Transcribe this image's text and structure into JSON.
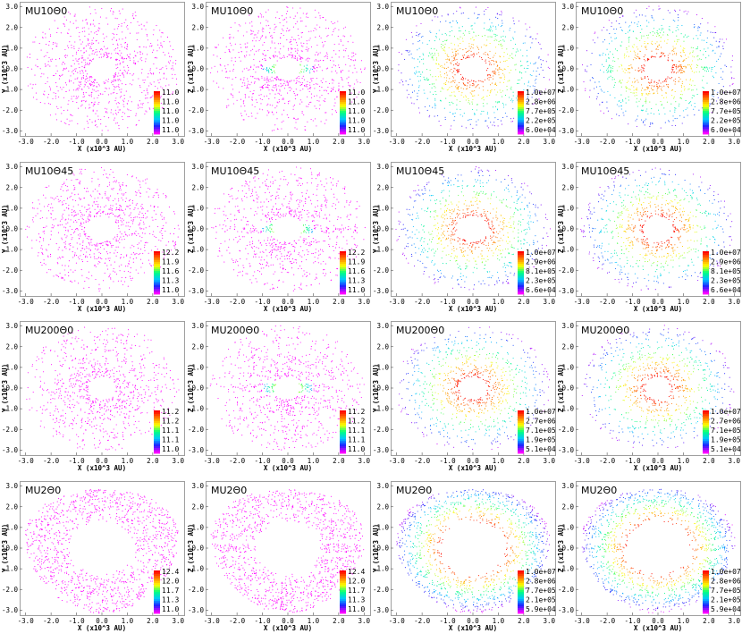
{
  "colormap": [
    "#ff00ff",
    "#2020ff",
    "#00c8ff",
    "#00ff80",
    "#ffff00",
    "#ff8000",
    "#ff0000"
  ],
  "axes": {
    "xticks": [
      "-3.0",
      "-2.0",
      "-1.0",
      "0.0",
      "1.0",
      "2.0",
      "3.0"
    ],
    "yticks": [
      "3.0",
      "2.0",
      "1.0",
      "0.0",
      "-1.0",
      "-2.0",
      "-3.0"
    ],
    "xlabel": "X (x10^3 AU)",
    "ylabel_face": "Y (x10^3 AU)",
    "ylabel_edge": "Z (x10^3 AU)"
  },
  "chart_data": [
    {
      "type": "scatter",
      "title": "MU10Θ0",
      "view": "face",
      "field": "temp",
      "xlim": [
        -3.2,
        3.2
      ],
      "ylim": [
        -3.2,
        3.2
      ],
      "colorbar": [
        "11.0",
        "11.0",
        "11.0",
        "11.0",
        "11.0"
      ]
    },
    {
      "type": "scatter",
      "title": "MU10Θ0",
      "view": "edge",
      "field": "temp",
      "xlim": [
        -3.2,
        3.2
      ],
      "ylim": [
        -3.2,
        3.2
      ],
      "colorbar": [
        "11.0",
        "11.0",
        "11.0",
        "11.0",
        "11.0"
      ]
    },
    {
      "type": "scatter",
      "title": "MU10Θ0",
      "view": "face",
      "field": "dens",
      "xlim": [
        -3.2,
        3.2
      ],
      "ylim": [
        -3.2,
        3.2
      ],
      "colorbar": [
        "1.0e+07",
        "2.8e+06",
        "7.7e+05",
        "2.2e+05",
        "6.0e+04"
      ]
    },
    {
      "type": "scatter",
      "title": "MU10Θ0",
      "view": "edge",
      "field": "dens",
      "xlim": [
        -3.2,
        3.2
      ],
      "ylim": [
        -3.2,
        3.2
      ],
      "colorbar": [
        "1.0e+07",
        "2.8e+06",
        "7.7e+05",
        "2.2e+05",
        "6.0e+04"
      ]
    },
    {
      "type": "scatter",
      "title": "MU10Θ45",
      "view": "face",
      "field": "temp",
      "xlim": [
        -3.2,
        3.2
      ],
      "ylim": [
        -3.2,
        3.2
      ],
      "colorbar": [
        "12.2",
        "11.9",
        "11.6",
        "11.3",
        "11.0"
      ]
    },
    {
      "type": "scatter",
      "title": "MU10Θ45",
      "view": "edge",
      "field": "temp",
      "xlim": [
        -3.2,
        3.2
      ],
      "ylim": [
        -3.2,
        3.2
      ],
      "colorbar": [
        "12.2",
        "11.9",
        "11.6",
        "11.3",
        "11.0"
      ]
    },
    {
      "type": "scatter",
      "title": "MU10Θ45",
      "view": "face",
      "field": "dens",
      "xlim": [
        -3.2,
        3.2
      ],
      "ylim": [
        -3.2,
        3.2
      ],
      "colorbar": [
        "1.0e+07",
        "2.9e+06",
        "8.1e+05",
        "2.3e+05",
        "6.6e+04"
      ]
    },
    {
      "type": "scatter",
      "title": "MU10Θ45",
      "view": "edge",
      "field": "dens",
      "xlim": [
        -3.2,
        3.2
      ],
      "ylim": [
        -3.2,
        3.2
      ],
      "colorbar": [
        "1.0e+07",
        "2.9e+06",
        "8.1e+05",
        "2.3e+05",
        "6.6e+04"
      ]
    },
    {
      "type": "scatter",
      "title": "MU200Θ0",
      "view": "face",
      "field": "temp",
      "xlim": [
        -3.2,
        3.2
      ],
      "ylim": [
        -3.2,
        3.2
      ],
      "colorbar": [
        "11.2",
        "11.2",
        "11.1",
        "11.1",
        "11.0"
      ]
    },
    {
      "type": "scatter",
      "title": "MU200Θ0",
      "view": "edge",
      "field": "temp",
      "xlim": [
        -3.2,
        3.2
      ],
      "ylim": [
        -3.2,
        3.2
      ],
      "colorbar": [
        "11.2",
        "11.2",
        "11.1",
        "11.1",
        "11.0"
      ]
    },
    {
      "type": "scatter",
      "title": "MU200Θ0",
      "view": "face",
      "field": "dens",
      "xlim": [
        -3.2,
        3.2
      ],
      "ylim": [
        -3.2,
        3.2
      ],
      "colorbar": [
        "1.0e+07",
        "2.7e+06",
        "7.1e+05",
        "1.9e+05",
        "5.1e+04"
      ]
    },
    {
      "type": "scatter",
      "title": "MU200Θ0",
      "view": "edge",
      "field": "dens",
      "xlim": [
        -3.2,
        3.2
      ],
      "ylim": [
        -3.2,
        3.2
      ],
      "colorbar": [
        "1.0e+07",
        "2.7e+06",
        "7.1e+05",
        "1.9e+05",
        "5.1e+04"
      ]
    },
    {
      "type": "scatter",
      "title": "MU2Θ0",
      "view": "face",
      "field": "temp",
      "xlim": [
        -3.2,
        3.2
      ],
      "ylim": [
        -3.2,
        3.2
      ],
      "colorbar": [
        "12.4",
        "12.0",
        "11.7",
        "11.3",
        "11.0"
      ]
    },
    {
      "type": "scatter",
      "title": "MU2Θ0",
      "view": "edge",
      "field": "temp",
      "xlim": [
        -3.2,
        3.2
      ],
      "ylim": [
        -3.2,
        3.2
      ],
      "colorbar": [
        "12.4",
        "12.0",
        "11.7",
        "11.3",
        "11.0"
      ]
    },
    {
      "type": "scatter",
      "title": "MU2Θ0",
      "view": "face",
      "field": "dens",
      "xlim": [
        -3.2,
        3.2
      ],
      "ylim": [
        -3.2,
        3.2
      ],
      "colorbar": [
        "1.0e+07",
        "2.8e+06",
        "7.7e+05",
        "2.1e+05",
        "5.9e+04"
      ]
    },
    {
      "type": "scatter",
      "title": "MU2Θ0",
      "view": "edge",
      "field": "dens",
      "xlim": [
        -3.2,
        3.2
      ],
      "ylim": [
        -3.2,
        3.2
      ],
      "colorbar": [
        "1.0e+07",
        "2.8e+06",
        "7.7e+05",
        "2.1e+05",
        "5.9e+04"
      ]
    }
  ]
}
